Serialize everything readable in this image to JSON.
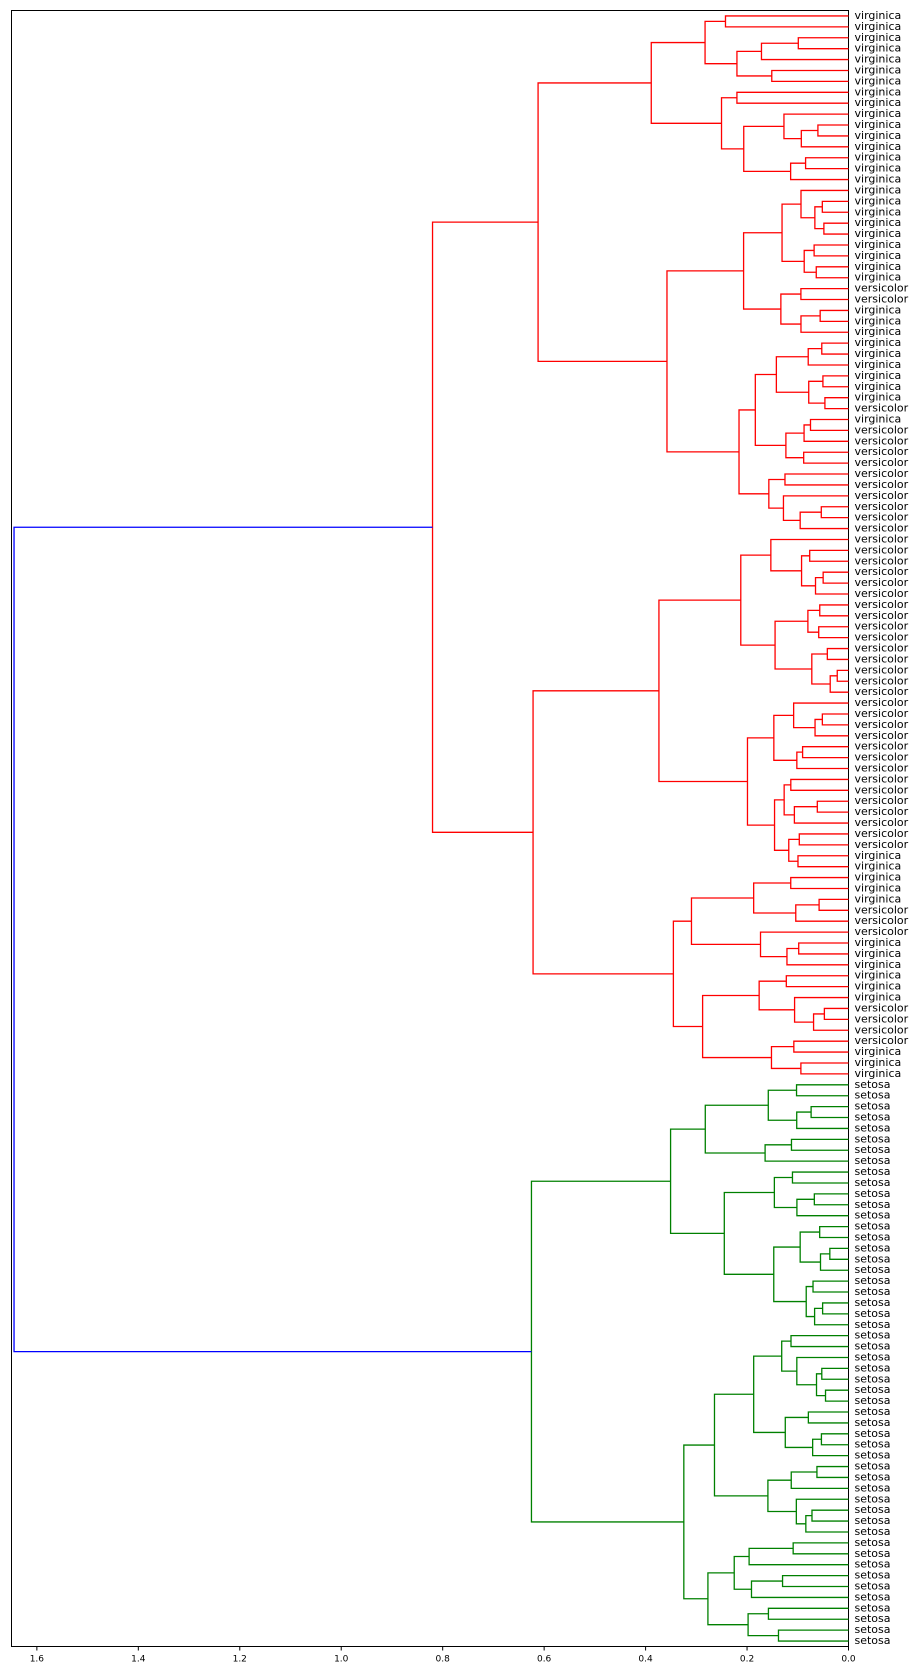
{
  "chart_data": {
    "type": "dendrogram",
    "orientation": "left",
    "title": "",
    "xlabel": "",
    "ylabel": "",
    "xlim": [
      1.65,
      0
    ],
    "x_ticks": [
      1.6,
      1.4,
      1.2,
      1.0,
      0.8,
      0.6,
      0.4,
      0.2,
      0.0
    ],
    "x_tick_labels": [
      "1.6",
      "1.4",
      "1.2",
      "1.0",
      "0.8",
      "0.6",
      "0.4",
      "0.2",
      "0.0"
    ],
    "grid": false,
    "leaf_labels_top_to_bottom": [
      "virginica",
      "virginica",
      "virginica",
      "virginica",
      "virginica",
      "virginica",
      "virginica",
      "virginica",
      "virginica",
      "virginica",
      "virginica",
      "virginica",
      "virginica",
      "virginica",
      "virginica",
      "virginica",
      "virginica",
      "virginica",
      "virginica",
      "virginica",
      "virginica",
      "virginica",
      "virginica",
      "virginica",
      "virginica",
      "versicolor",
      "versicolor",
      "virginica",
      "virginica",
      "virginica",
      "virginica",
      "virginica",
      "virginica",
      "virginica",
      "virginica",
      "virginica",
      "versicolor",
      "virginica",
      "versicolor",
      "versicolor",
      "versicolor",
      "versicolor",
      "versicolor",
      "versicolor",
      "versicolor",
      "versicolor",
      "versicolor",
      "versicolor",
      "versicolor",
      "versicolor",
      "versicolor",
      "versicolor",
      "versicolor",
      "versicolor",
      "versicolor",
      "versicolor",
      "versicolor",
      "versicolor",
      "versicolor",
      "versicolor",
      "versicolor",
      "versicolor",
      "versicolor",
      "versicolor",
      "versicolor",
      "versicolor",
      "versicolor",
      "versicolor",
      "versicolor",
      "versicolor",
      "versicolor",
      "versicolor",
      "versicolor",
      "versicolor",
      "versicolor",
      "versicolor",
      "versicolor",
      "virginica",
      "virginica",
      "virginica",
      "virginica",
      "virginica",
      "versicolor",
      "versicolor",
      "versicolor",
      "virginica",
      "virginica",
      "virginica",
      "virginica",
      "virginica",
      "virginica",
      "versicolor",
      "versicolor",
      "versicolor",
      "versicolor",
      "virginica",
      "virginica",
      "virginica",
      "setosa",
      "setosa",
      "setosa",
      "setosa",
      "setosa",
      "setosa",
      "setosa",
      "setosa",
      "setosa",
      "setosa",
      "setosa",
      "setosa",
      "setosa",
      "setosa",
      "setosa",
      "setosa",
      "setosa",
      "setosa",
      "setosa",
      "setosa",
      "setosa",
      "setosa",
      "setosa",
      "setosa",
      "setosa",
      "setosa",
      "setosa",
      "setosa",
      "setosa",
      "setosa",
      "setosa",
      "setosa",
      "setosa",
      "setosa",
      "setosa",
      "setosa",
      "setosa",
      "setosa",
      "setosa",
      "setosa",
      "setosa",
      "setosa",
      "setosa",
      "setosa",
      "setosa",
      "setosa",
      "setosa",
      "setosa",
      "setosa",
      "setosa",
      "setosa",
      "setosa"
    ],
    "clusters": [
      {
        "name": "setosa",
        "color": "#008000",
        "leaves": [
          98,
          149
        ]
      },
      {
        "name": "versicolor/virginica",
        "color": "#ff0000",
        "leaves": [
          0,
          97
        ]
      }
    ],
    "root_link_color": "#0000ff",
    "merges": [
      {
        "height": 1.645,
        "left": "red-cluster",
        "right": "green-cluster",
        "color": "#0000ff"
      },
      {
        "height": 0.82,
        "cluster": "red-cluster",
        "color": "#ff0000"
      },
      {
        "height": 0.625,
        "cluster": "green-cluster",
        "color": "#008000"
      }
    ],
    "colors": {
      "cluster_1": "#ff0000",
      "cluster_2": "#008000",
      "above_threshold": "#0000ff"
    }
  }
}
